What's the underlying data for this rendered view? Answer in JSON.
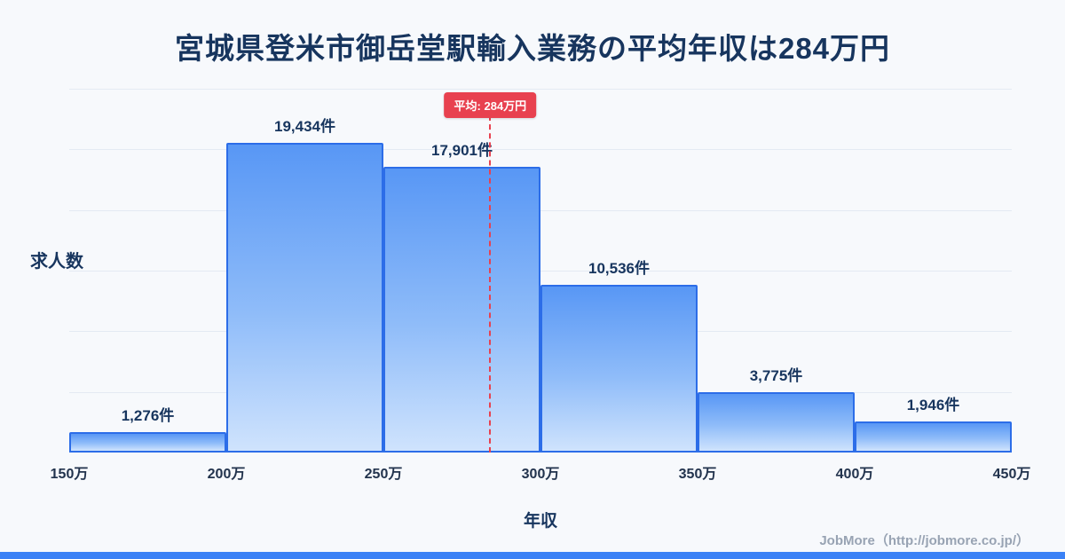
{
  "page": {
    "title": "宮城県登米市御岳堂駅輸入業務の平均年収は284万円",
    "footer": "JobMore（http://jobmore.co.jp/）"
  },
  "chart_data": {
    "type": "bar",
    "title": "宮城県登米市御岳堂駅輸入業務の平均年収は284万円",
    "xlabel": "年収",
    "ylabel": "求人数",
    "x_ticks": [
      "150万",
      "200万",
      "250万",
      "300万",
      "350万",
      "400万",
      "450万"
    ],
    "xlim": [
      150,
      450
    ],
    "ylim": [
      0,
      22800
    ],
    "grid": true,
    "legend": "none",
    "bins": [
      {
        "range": [
          150,
          200
        ],
        "value": 1276,
        "label": "1,276件"
      },
      {
        "range": [
          200,
          250
        ],
        "value": 19434,
        "label": "19,434件"
      },
      {
        "range": [
          250,
          300
        ],
        "value": 17901,
        "label": "17,901件"
      },
      {
        "range": [
          300,
          350
        ],
        "value": 10536,
        "label": "10,536件"
      },
      {
        "range": [
          350,
          400
        ],
        "value": 3775,
        "label": "3,775件"
      },
      {
        "range": [
          400,
          450
        ],
        "value": 1946,
        "label": "1,946件"
      }
    ],
    "mean": {
      "value": 284,
      "label": "平均: 284万円"
    },
    "colors": {
      "bar_top": "#5897f5",
      "bar_bottom": "#cfe3fd",
      "bar_border": "#2c6de8",
      "mean_red": "#e8414f",
      "title_navy": "#17355e",
      "accent_blue": "#3b82f6",
      "background": "#f7f9fc",
      "footer_gray": "#98a3b3"
    }
  }
}
